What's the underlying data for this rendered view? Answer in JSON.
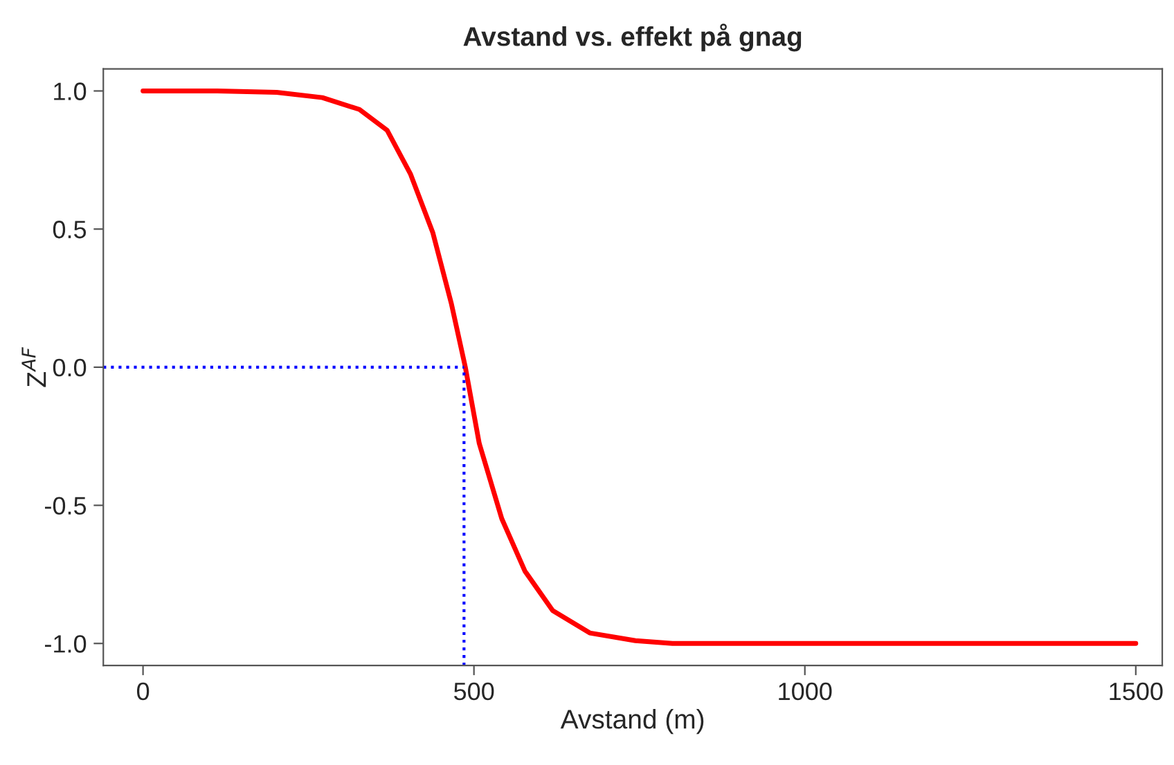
{
  "chart_data": {
    "type": "line",
    "title": "Avstand vs. effekt på gnag",
    "xlabel": "Avstand (m)",
    "ylabel": "Z$^{AF}$",
    "x": [
      0,
      112,
      202,
      271,
      327,
      369,
      404,
      438,
      466,
      487,
      508,
      542,
      577,
      619,
      675,
      744,
      800,
      1000,
      1250,
      1500
    ],
    "series": [
      {
        "color": "#ff0000",
        "values": [
          1.0,
          1.0,
          0.995,
          0.976,
          0.933,
          0.857,
          0.7,
          0.486,
          0.229,
          0.0,
          -0.276,
          -0.548,
          -0.738,
          -0.881,
          -0.962,
          -0.99,
          -1.0,
          -1.0,
          -1.0,
          -1.0
        ]
      }
    ],
    "xlim": [
      -60,
      1540
    ],
    "ylim": [
      -1.08,
      1.08
    ],
    "xticks": [
      0,
      500,
      1000,
      1500
    ],
    "yticks": [
      {
        "value": 1.0,
        "label": "1.0"
      },
      {
        "value": 0.5,
        "label": "0.5"
      },
      {
        "value": 0.0,
        "label": "0.0"
      },
      {
        "value": -0.5,
        "label": "-0.5"
      },
      {
        "value": -1.0,
        "label": "-1.0"
      }
    ],
    "ref_lines": [
      {
        "axis": "y",
        "value": 0.0,
        "color": "#0000ff",
        "line_style": "dotted"
      },
      {
        "axis": "x",
        "value": 485,
        "color": "#0000ff",
        "line_style": "dotted"
      }
    ],
    "grid": false,
    "legend": false,
    "marker": "none",
    "line_style": "solid"
  }
}
